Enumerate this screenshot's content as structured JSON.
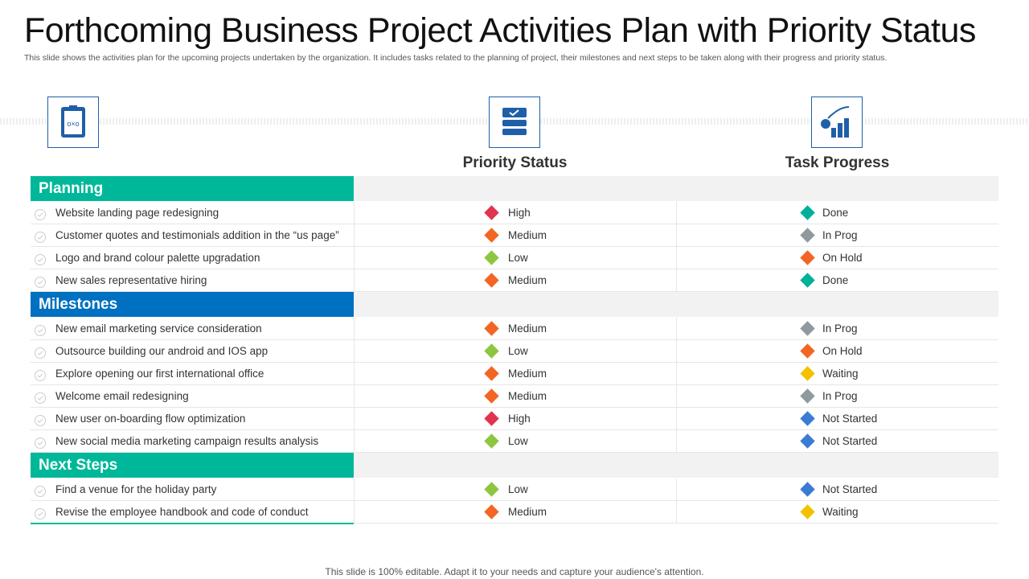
{
  "header": {
    "title": "Forthcoming Business Project Activities Plan with Priority Status",
    "subtitle": "This slide shows the activities plan for the upcoming projects undertaken by the organization. It includes tasks related to the planning of project, their milestones and next steps to be taken along with their progress and priority status."
  },
  "columns": [
    "Priority Status",
    "Task Progress"
  ],
  "sections": [
    {
      "title": "Planning",
      "color": "#00b899",
      "rows": [
        {
          "task": "Website landing page redesigning",
          "priority": {
            "text": "High",
            "color": "#e0344f"
          },
          "progress": {
            "text": "Done",
            "color": "#00b09b"
          }
        },
        {
          "task": "Customer quotes and testimonials addition in the “us page”",
          "priority": {
            "text": "Medium",
            "color": "#f26522"
          },
          "progress": {
            "text": "In Prog",
            "color": "#8e9a9e"
          }
        },
        {
          "task": "Logo and brand colour palette upgradation",
          "priority": {
            "text": "Low",
            "color": "#8dc63f"
          },
          "progress": {
            "text": "On Hold",
            "color": "#f26522"
          }
        },
        {
          "task": "New sales representative  hiring",
          "priority": {
            "text": "Medium",
            "color": "#f26522"
          },
          "progress": {
            "text": "Done",
            "color": "#00b09b"
          }
        }
      ]
    },
    {
      "title": "Milestones",
      "color": "#0070c0",
      "rows": [
        {
          "task": "New email marketing service consideration",
          "priority": {
            "text": "Medium",
            "color": "#f26522"
          },
          "progress": {
            "text": "In Prog",
            "color": "#8e9a9e"
          }
        },
        {
          "task": "Outsource building our android and IOS app",
          "priority": {
            "text": "Low",
            "color": "#8dc63f"
          },
          "progress": {
            "text": "On Hold",
            "color": "#f26522"
          }
        },
        {
          "task": "Explore opening our first international office",
          "priority": {
            "text": "Medium",
            "color": "#f26522"
          },
          "progress": {
            "text": "Waiting",
            "color": "#f2c200"
          }
        },
        {
          "task": "Welcome email redesigning",
          "priority": {
            "text": "Medium",
            "color": "#f26522"
          },
          "progress": {
            "text": "In Prog",
            "color": "#8e9a9e"
          }
        },
        {
          "task": "New user on-boarding flow optimization",
          "priority": {
            "text": "High",
            "color": "#e0344f"
          },
          "progress": {
            "text": "Not Started",
            "color": "#3a7bd5"
          }
        },
        {
          "task": "New social media marketing campaign results analysis",
          "priority": {
            "text": "Low",
            "color": "#8dc63f"
          },
          "progress": {
            "text": "Not Started",
            "color": "#3a7bd5"
          }
        }
      ]
    },
    {
      "title": "Next Steps",
      "color": "#00b899",
      "rows": [
        {
          "task": "Find a venue  for the holiday party",
          "priority": {
            "text": "Low",
            "color": "#8dc63f"
          },
          "progress": {
            "text": "Not Started",
            "color": "#3a7bd5"
          }
        },
        {
          "task": "Revise  the employee handbook and code of conduct",
          "priority": {
            "text": "Medium",
            "color": "#f26522"
          },
          "progress": {
            "text": "Waiting",
            "color": "#f2c200"
          }
        }
      ]
    }
  ],
  "footer": "This slide is 100% editable. Adapt it to your needs and capture your audience's attention."
}
